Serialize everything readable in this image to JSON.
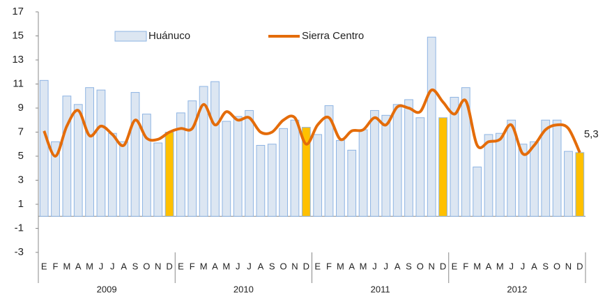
{
  "chart_data": {
    "type": "bar_line",
    "categories": [
      "E",
      "F",
      "M",
      "A",
      "M",
      "J",
      "J",
      "A",
      "S",
      "O",
      "N",
      "D",
      "E",
      "F",
      "M",
      "A",
      "M",
      "J",
      "J",
      "A",
      "S",
      "O",
      "N",
      "D",
      "E",
      "F",
      "M",
      "A",
      "M",
      "J",
      "J",
      "A",
      "S",
      "O",
      "N",
      "D",
      "E",
      "F",
      "M",
      "A",
      "M",
      "J",
      "J",
      "A",
      "S",
      "O",
      "N",
      "D"
    ],
    "groups": [
      "2009",
      "2010",
      "2011",
      "2012"
    ],
    "series": [
      {
        "name": "Huánuco",
        "type": "bar",
        "color": "#dce6f2",
        "stroke": "#8eb4e3",
        "colors": [
          "#dce6f2",
          "#dce6f2",
          "#dce6f2",
          "#dce6f2",
          "#dce6f2",
          "#dce6f2",
          "#dce6f2",
          "#dce6f2",
          "#dce6f2",
          "#dce6f2",
          "#dce6f2",
          "#ffc000",
          "#dce6f2",
          "#dce6f2",
          "#dce6f2",
          "#dce6f2",
          "#dce6f2",
          "#dce6f2",
          "#dce6f2",
          "#dce6f2",
          "#dce6f2",
          "#dce6f2",
          "#dce6f2",
          "#ffc000",
          "#dce6f2",
          "#dce6f2",
          "#dce6f2",
          "#dce6f2",
          "#dce6f2",
          "#dce6f2",
          "#dce6f2",
          "#dce6f2",
          "#dce6f2",
          "#dce6f2",
          "#dce6f2",
          "#ffc000",
          "#dce6f2",
          "#dce6f2",
          "#dce6f2",
          "#dce6f2",
          "#dce6f2",
          "#dce6f2",
          "#dce6f2",
          "#dce6f2",
          "#dce6f2",
          "#dce6f2",
          "#dce6f2",
          "#ffc000"
        ],
        "values": [
          11.3,
          6.2,
          10.0,
          9.3,
          10.7,
          10.5,
          6.9,
          6.2,
          10.3,
          8.5,
          6.1,
          7.0,
          8.6,
          9.6,
          10.8,
          11.2,
          7.9,
          8.3,
          8.8,
          5.9,
          6.0,
          7.3,
          8.0,
          7.4,
          6.8,
          9.2,
          6.3,
          5.5,
          7.2,
          8.8,
          8.4,
          9.3,
          9.7,
          8.2,
          14.9,
          8.2,
          9.9,
          10.7,
          4.1,
          6.8,
          6.9,
          8.0,
          6.0,
          6.2,
          8.0,
          8.0,
          5.4,
          5.3
        ]
      },
      {
        "name": "Sierra Centro",
        "type": "line",
        "color": "#e46c0a",
        "values": [
          7.1,
          5.0,
          7.5,
          8.8,
          6.7,
          7.5,
          6.8,
          5.9,
          8.0,
          6.5,
          6.4,
          7.0,
          7.3,
          7.3,
          9.3,
          7.6,
          8.7,
          8.0,
          8.2,
          7.0,
          7.0,
          8.0,
          8.2,
          6.0,
          7.6,
          8.2,
          6.4,
          7.1,
          7.2,
          8.2,
          7.6,
          9.1,
          9.0,
          8.7,
          10.5,
          9.5,
          8.5,
          9.6,
          5.9,
          6.2,
          6.4,
          7.6,
          5.2,
          5.9,
          7.2,
          7.6,
          7.3,
          5.3
        ],
        "value_labels": [
          null,
          null,
          null,
          null,
          null,
          null,
          null,
          null,
          null,
          null,
          null,
          null,
          null,
          null,
          null,
          null,
          null,
          null,
          null,
          null,
          null,
          null,
          null,
          null,
          null,
          null,
          null,
          null,
          null,
          null,
          null,
          null,
          null,
          null,
          null,
          null,
          null,
          null,
          null,
          null,
          null,
          null,
          null,
          null,
          null,
          null,
          null,
          "5,3"
        ]
      }
    ],
    "ylim": [
      -3,
      17
    ],
    "yticks": [
      -3,
      -1,
      1,
      3,
      5,
      7,
      9,
      11,
      13,
      15,
      17
    ],
    "grid": false,
    "legend": "top"
  }
}
